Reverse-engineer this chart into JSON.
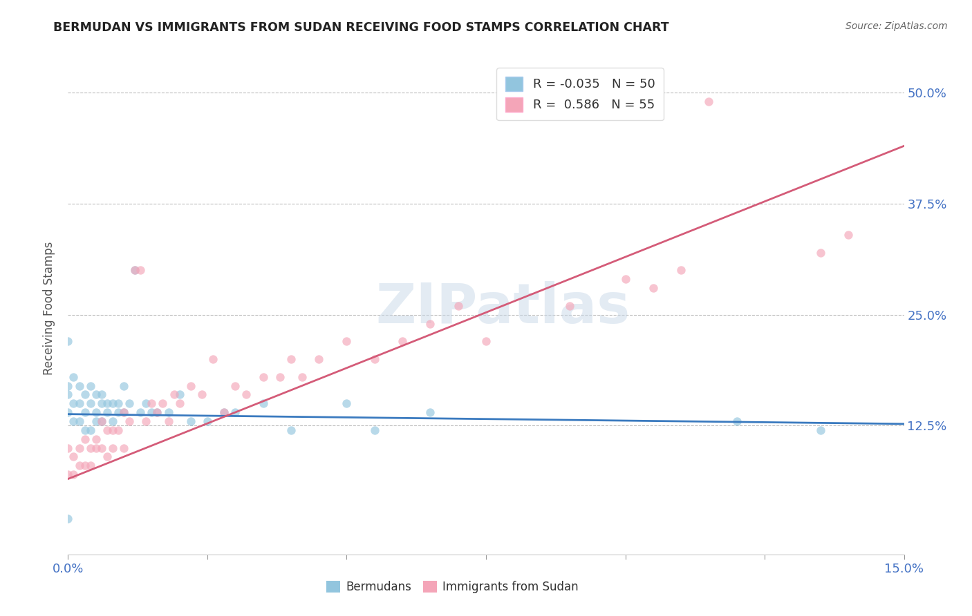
{
  "title": "BERMUDAN VS IMMIGRANTS FROM SUDAN RECEIVING FOOD STAMPS CORRELATION CHART",
  "source_text": "Source: ZipAtlas.com",
  "ylabel": "Receiving Food Stamps",
  "xlim": [
    0.0,
    0.15
  ],
  "ylim": [
    -0.02,
    0.535
  ],
  "xtick_vals": [
    0.0,
    0.025,
    0.05,
    0.075,
    0.1,
    0.125,
    0.15
  ],
  "xtick_labels_show": {
    "0.0": "0.0%",
    "0.15": "15.0%"
  },
  "ytick_vals": [
    0.125,
    0.25,
    0.375,
    0.5
  ],
  "ytick_labels": [
    "12.5%",
    "25.0%",
    "37.5%",
    "50.0%"
  ],
  "watermark": "ZIPatlas",
  "blue_color": "#92c5de",
  "pink_color": "#f4a5b8",
  "blue_line_color": "#3a7abf",
  "pink_line_color": "#d45b78",
  "R_blue": "-0.035",
  "N_blue": "50",
  "R_pink": "0.586",
  "N_pink": "55",
  "legend_label_blue": "Bermudans",
  "legend_label_pink": "Immigrants from Sudan",
  "blue_scatter_x": [
    0.0,
    0.0,
    0.0,
    0.0,
    0.0,
    0.001,
    0.001,
    0.001,
    0.002,
    0.002,
    0.002,
    0.003,
    0.003,
    0.003,
    0.004,
    0.004,
    0.004,
    0.005,
    0.005,
    0.005,
    0.006,
    0.006,
    0.006,
    0.007,
    0.007,
    0.008,
    0.008,
    0.009,
    0.009,
    0.01,
    0.01,
    0.011,
    0.012,
    0.013,
    0.014,
    0.015,
    0.016,
    0.018,
    0.02,
    0.022,
    0.025,
    0.028,
    0.03,
    0.035,
    0.04,
    0.05,
    0.055,
    0.065,
    0.12,
    0.135
  ],
  "blue_scatter_y": [
    0.22,
    0.17,
    0.16,
    0.14,
    0.02,
    0.18,
    0.15,
    0.13,
    0.17,
    0.15,
    0.13,
    0.16,
    0.14,
    0.12,
    0.17,
    0.15,
    0.12,
    0.16,
    0.14,
    0.13,
    0.16,
    0.15,
    0.13,
    0.15,
    0.14,
    0.15,
    0.13,
    0.15,
    0.14,
    0.17,
    0.14,
    0.15,
    0.3,
    0.14,
    0.15,
    0.14,
    0.14,
    0.14,
    0.16,
    0.13,
    0.13,
    0.14,
    0.14,
    0.15,
    0.12,
    0.15,
    0.12,
    0.14,
    0.13,
    0.12
  ],
  "pink_scatter_x": [
    0.0,
    0.0,
    0.001,
    0.001,
    0.002,
    0.002,
    0.003,
    0.003,
    0.004,
    0.004,
    0.005,
    0.005,
    0.006,
    0.006,
    0.007,
    0.007,
    0.008,
    0.008,
    0.009,
    0.01,
    0.01,
    0.011,
    0.012,
    0.013,
    0.014,
    0.015,
    0.016,
    0.017,
    0.018,
    0.019,
    0.02,
    0.022,
    0.024,
    0.026,
    0.028,
    0.03,
    0.032,
    0.035,
    0.038,
    0.04,
    0.042,
    0.045,
    0.05,
    0.055,
    0.06,
    0.065,
    0.07,
    0.075,
    0.09,
    0.1,
    0.105,
    0.11,
    0.115,
    0.135,
    0.14
  ],
  "pink_scatter_y": [
    0.1,
    0.07,
    0.09,
    0.07,
    0.1,
    0.08,
    0.11,
    0.08,
    0.1,
    0.08,
    0.11,
    0.1,
    0.13,
    0.1,
    0.12,
    0.09,
    0.12,
    0.1,
    0.12,
    0.14,
    0.1,
    0.13,
    0.3,
    0.3,
    0.13,
    0.15,
    0.14,
    0.15,
    0.13,
    0.16,
    0.15,
    0.17,
    0.16,
    0.2,
    0.14,
    0.17,
    0.16,
    0.18,
    0.18,
    0.2,
    0.18,
    0.2,
    0.22,
    0.2,
    0.22,
    0.24,
    0.26,
    0.22,
    0.26,
    0.29,
    0.28,
    0.3,
    0.49,
    0.32,
    0.34
  ],
  "blue_line_x": [
    0.0,
    0.15
  ],
  "blue_line_y": [
    0.138,
    0.127
  ],
  "pink_line_x": [
    0.0,
    0.15
  ],
  "pink_line_y": [
    0.065,
    0.44
  ]
}
